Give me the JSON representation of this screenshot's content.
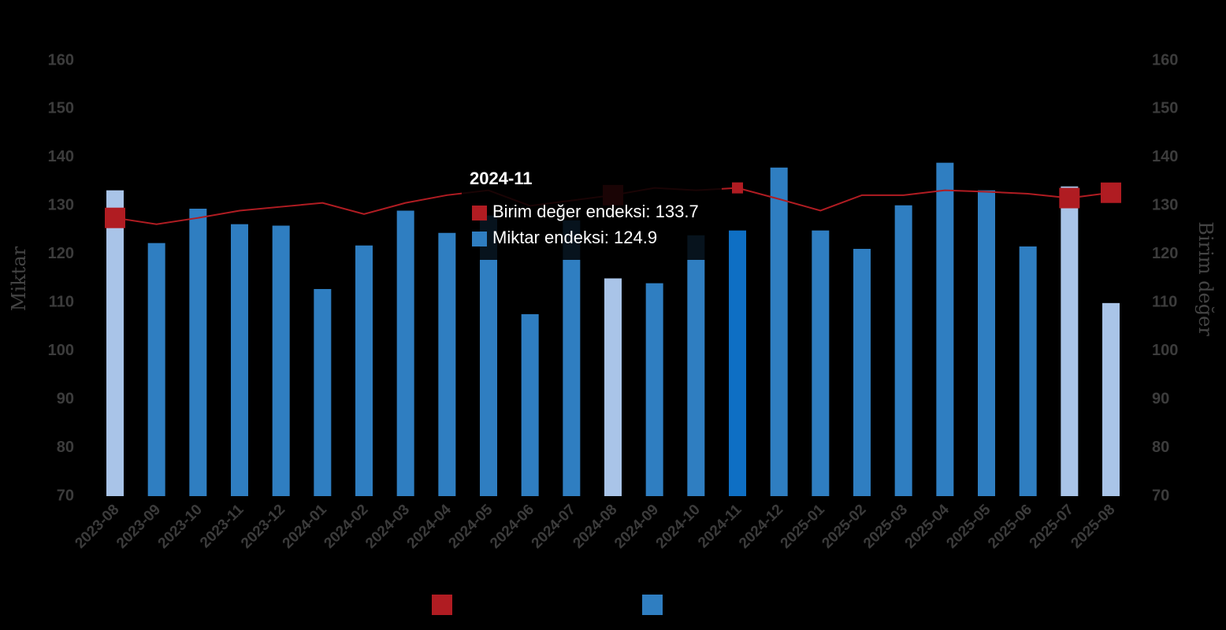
{
  "chart_data": {
    "type": "bar-line",
    "categories": [
      "2023-08",
      "2023-09",
      "2023-10",
      "2023-11",
      "2023-12",
      "2024-01",
      "2024-02",
      "2024-03",
      "2024-04",
      "2024-05",
      "2024-06",
      "2024-07",
      "2024-08",
      "2024-09",
      "2024-10",
      "2024-11",
      "2024-12",
      "2025-01",
      "2025-02",
      "2025-03",
      "2025-04",
      "2025-05",
      "2025-06",
      "2025-07",
      "2025-08"
    ],
    "y_label": "Miktar",
    "y2_label": "Birim değer",
    "ylim": [
      70,
      160
    ],
    "yticks": [
      70,
      80,
      90,
      100,
      110,
      120,
      130,
      140,
      150,
      160
    ],
    "y2lim": [
      70,
      160
    ],
    "y2ticks": [
      70,
      80,
      90,
      100,
      110,
      120,
      130,
      140,
      150,
      160
    ],
    "series": [
      {
        "name": "Birim değer endeksi",
        "type": "line",
        "axis": "y2",
        "color": "#b01c22",
        "values": [
          127.5,
          126.2,
          127.5,
          129.0,
          129.8,
          130.6,
          128.3,
          130.6,
          132.2,
          133.2,
          130.0,
          131.1,
          132.2,
          133.7,
          133.2,
          133.7,
          131.4,
          129.0,
          132.2,
          132.2,
          133.2,
          132.9,
          132.5,
          131.6,
          132.7
        ],
        "marker_points": [
          0,
          12,
          23,
          24
        ],
        "small_marker_points": [
          15
        ]
      },
      {
        "name": "Miktar endeksi",
        "type": "bar",
        "color": "#2f7ec1",
        "colors": [
          "#a9c4e8",
          "#2f7ec1",
          "#2f7ec1",
          "#2f7ec1",
          "#2f7ec1",
          "#2f7ec1",
          "#2f7ec1",
          "#2f7ec1",
          "#2f7ec1",
          "#2f7ec1",
          "#2f7ec1",
          "#2f7ec1",
          "#a9c4e8",
          "#2f7ec1",
          "#2f7ec1",
          "#0e6fc4",
          "#2f7ec1",
          "#2f7ec1",
          "#2f7ec1",
          "#2f7ec1",
          "#2f7ec1",
          "#2f7ec1",
          "#2f7ec1",
          "#a9c4e8",
          "#a9c4e8"
        ],
        "values": [
          133.2,
          122.3,
          129.4,
          126.2,
          125.9,
          112.8,
          121.8,
          129.0,
          124.4,
          128.0,
          107.6,
          127.0,
          115.0,
          114.0,
          123.9,
          124.9,
          137.9,
          124.9,
          121.1,
          130.1,
          138.9,
          133.2,
          121.6,
          134.0,
          109.9
        ]
      }
    ],
    "tooltip": {
      "title": "2024-11",
      "rows": [
        "Birim değer endeksi: 133.7",
        "Miktar endeksi: 124.9"
      ]
    }
  }
}
